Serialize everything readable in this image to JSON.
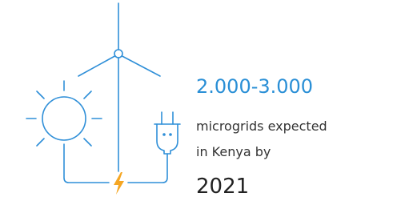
{
  "figure": {
    "headline": "2.000-3.000",
    "description_lines": [
      "microgrids expected",
      "in Kenya by"
    ],
    "year": "2021"
  }
}
